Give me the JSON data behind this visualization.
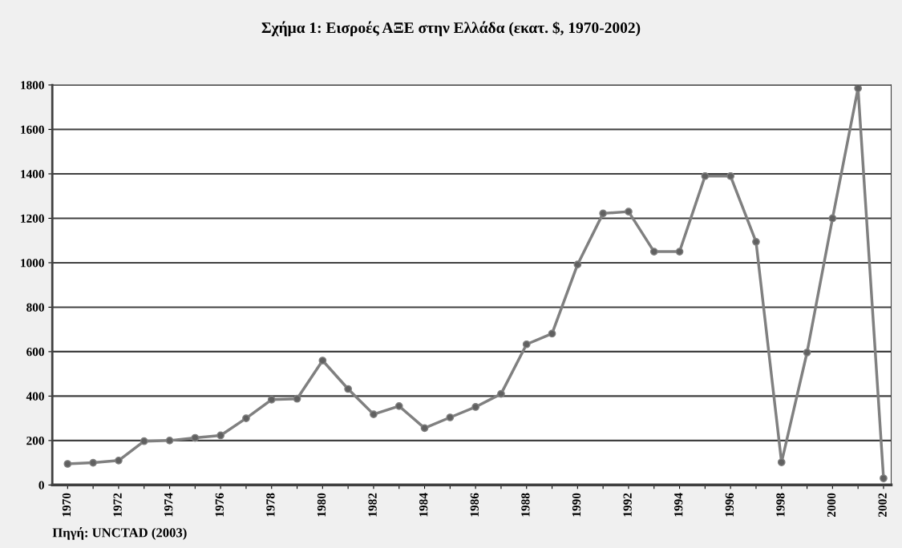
{
  "chart_data": {
    "type": "line",
    "title": "Σχήμα 1: Εισροές ΑΞΕ στην Ελλάδα (εκατ. $, 1970-2002)",
    "x": [
      1970,
      1971,
      1972,
      1973,
      1974,
      1975,
      1976,
      1977,
      1978,
      1979,
      1980,
      1981,
      1982,
      1983,
      1984,
      1985,
      1986,
      1987,
      1988,
      1989,
      1990,
      1991,
      1992,
      1993,
      1994,
      1995,
      1996,
      1997,
      1998,
      1999,
      2000,
      2001,
      2002
    ],
    "series": [
      {
        "color": "#808080",
        "values": [
          95,
          100,
          110,
          197,
          200,
          212,
          223,
          300,
          384,
          388,
          560,
          432,
          318,
          355,
          256,
          304,
          351,
          410,
          633,
          681,
          992,
          1222,
          1230,
          1050,
          1050,
          1390,
          1390,
          1094,
          102,
          596,
          1200,
          1785,
          30
        ]
      }
    ],
    "xlim": [
      1969.4,
      2002.3
    ],
    "xticks": [
      1970,
      {
        "value": 1971,
        "label": null
      },
      1972,
      {
        "value": 1973,
        "label": null
      },
      1974,
      {
        "value": 1975,
        "label": null
      },
      1976,
      {
        "value": 1977,
        "label": null
      },
      1978,
      {
        "value": 1979,
        "label": null
      },
      1980,
      {
        "value": 1981,
        "label": null
      },
      1982,
      {
        "value": 1983,
        "label": null
      },
      1984,
      {
        "value": 1985,
        "label": null
      },
      1986,
      {
        "value": 1987,
        "label": null
      },
      1988,
      {
        "value": 1989,
        "label": null
      },
      1990,
      {
        "value": 1991,
        "label": null
      },
      1992,
      {
        "value": 1993,
        "label": null
      },
      1994,
      {
        "value": 1995,
        "label": null
      },
      1996,
      {
        "value": 1997,
        "label": null
      },
      1998,
      {
        "value": 1999,
        "label": null
      },
      2000,
      {
        "value": 2001,
        "label": null
      },
      2002
    ],
    "ylim": [
      0,
      1800
    ],
    "yticks": [
      0,
      200,
      400,
      600,
      800,
      1000,
      1200,
      1400,
      1600,
      1800
    ],
    "grid": "y",
    "marker": "circle",
    "line_style": "solid",
    "annotations": [
      "Πηγή: UNCTAD (2003)"
    ]
  }
}
